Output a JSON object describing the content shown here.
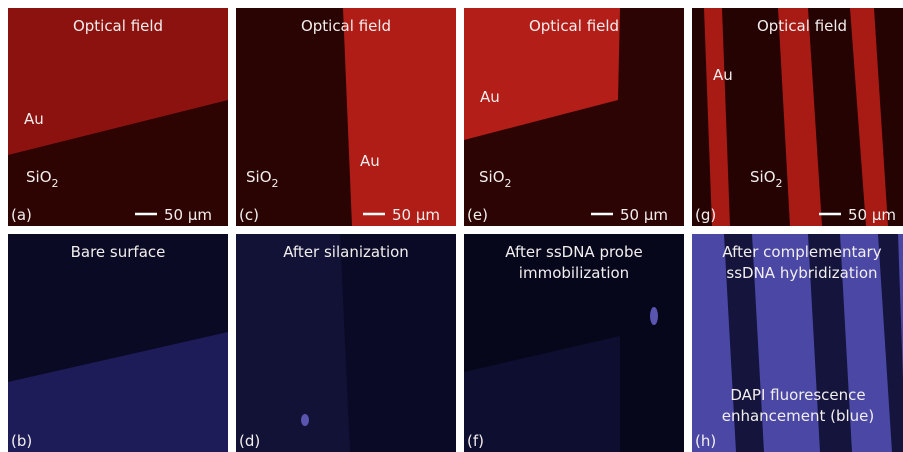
{
  "panels": [
    {
      "tag": "(a)",
      "title": [
        "Optical field"
      ],
      "labels": [
        {
          "text": "Au"
        },
        {
          "text": "SiO",
          "sub": "2"
        }
      ],
      "scale_bar": "50 µm"
    },
    {
      "tag": "(b)",
      "title": [
        "Bare surface"
      ]
    },
    {
      "tag": "(c)",
      "title": [
        "Optical field"
      ],
      "labels": [
        {
          "text": "SiO",
          "sub": "2"
        },
        {
          "text": "Au"
        }
      ],
      "scale_bar": "50 µm"
    },
    {
      "tag": "(d)",
      "title": [
        "After silanization"
      ]
    },
    {
      "tag": "(e)",
      "title": [
        "Optical field"
      ],
      "labels": [
        {
          "text": "Au"
        },
        {
          "text": "SiO",
          "sub": "2"
        }
      ],
      "scale_bar": "50 µm"
    },
    {
      "tag": "(f)",
      "title": [
        "After ssDNA probe",
        "immobilization"
      ]
    },
    {
      "tag": "(g)",
      "title": [
        "Optical field"
      ],
      "labels": [
        {
          "text": "Au"
        },
        {
          "text": "SiO",
          "sub": "2"
        }
      ],
      "scale_bar": "50 µm"
    },
    {
      "tag": "(h)",
      "title": [
        "After complementary",
        "ssDNA hybridization"
      ],
      "note": [
        "DAPI fluorescence",
        "enhancement (blue)"
      ]
    }
  ]
}
